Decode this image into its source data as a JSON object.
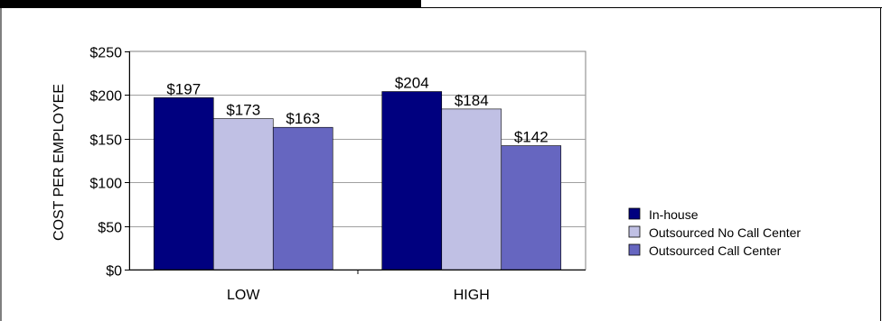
{
  "chart_data": {
    "type": "bar",
    "categories": [
      "LOW",
      "HIGH"
    ],
    "series": [
      {
        "name": "In-house",
        "values": [
          197,
          204
        ],
        "color": "#00007f",
        "labels": [
          "$197",
          "$204"
        ]
      },
      {
        "name": "Outsourced No Call Center",
        "values": [
          173,
          184
        ],
        "color": "#c0c0e4",
        "labels": [
          "$173",
          "$184"
        ]
      },
      {
        "name": "Outsourced Call Center",
        "values": [
          163,
          142
        ],
        "color": "#6666c0",
        "labels": [
          "$163",
          "$142"
        ]
      }
    ],
    "ylabel": "COST PER EMPLOYEE",
    "xlabel": "",
    "ylim": [
      0,
      250
    ],
    "yticks": [
      0,
      50,
      100,
      150,
      200,
      250
    ],
    "ytick_labels": [
      "$0",
      "$50",
      "$100",
      "$150",
      "$200",
      "$250"
    ],
    "grid": true,
    "legend_position": "right"
  }
}
